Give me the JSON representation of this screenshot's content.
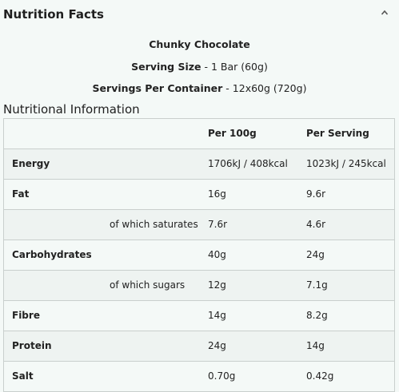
{
  "panel": {
    "title": "Nutrition Facts",
    "collapse_icon": "chevron-up-icon"
  },
  "product": {
    "name": "Chunky Chocolate",
    "serving_size_label": "Serving Size",
    "serving_size_value": " - 1 Bar (60g)",
    "servings_label": "Servings Per Container",
    "servings_value": " - 12x60g (720g)"
  },
  "nutrition": {
    "section_title": "Nutritional Information",
    "columns": [
      "",
      "Per 100g",
      "Per Serving"
    ],
    "rows": [
      {
        "name": "Energy",
        "per100": "1706kJ / 408kcal",
        "serving": "1023kJ / 245kcal"
      },
      {
        "name": "Fat",
        "per100": "16g",
        "serving": "9.6r"
      },
      {
        "name": "of which saturates",
        "per100": "7.6r",
        "serving": "4.6r"
      },
      {
        "name": "Carbohydrates",
        "per100": "40g",
        "serving": "24g"
      },
      {
        "name": "of which sugars",
        "per100": "12g",
        "serving": "7.1g"
      },
      {
        "name": "Fibre",
        "per100": "14g",
        "serving": "8.2g"
      },
      {
        "name": "Protein",
        "per100": "24g",
        "serving": "14g"
      },
      {
        "name": "Salt",
        "per100": "0.70g",
        "serving": "0.42g"
      }
    ]
  }
}
